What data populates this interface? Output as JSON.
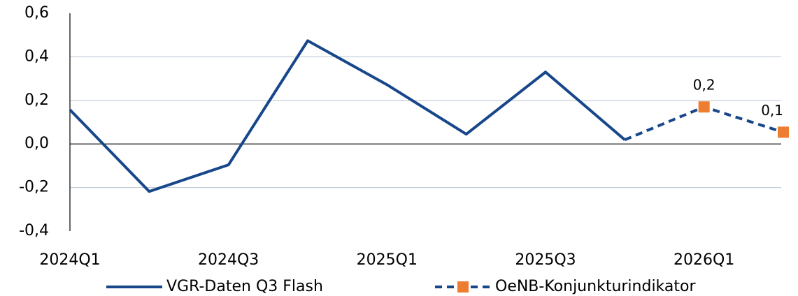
{
  "chart_data": {
    "type": "line",
    "categories": [
      "2024Q1",
      null,
      "2024Q3",
      null,
      "2025Q1",
      null,
      "2025Q3",
      null,
      "2026Q1",
      null
    ],
    "series": [
      {
        "name": "VGR-Daten Q3 Flash",
        "color": "#17478a",
        "dash": false,
        "values": [
          0.157,
          -0.218,
          -0.096,
          0.474,
          0.272,
          0.045,
          0.33,
          0.019,
          null,
          null
        ]
      },
      {
        "name": "OeNB-Konjunkturindikator",
        "color": "#17478a",
        "marker_color": "#ed7d31",
        "dash": true,
        "values": [
          null,
          null,
          null,
          null,
          null,
          null,
          null,
          0.019,
          0.17,
          0.054
        ],
        "value_labels": [
          null,
          null,
          null,
          null,
          null,
          null,
          null,
          null,
          "0,2",
          "0,1"
        ]
      }
    ],
    "ylim": [
      -0.4,
      0.6
    ],
    "yticks": [
      {
        "value": -0.4,
        "label": "-0,4"
      },
      {
        "value": -0.2,
        "label": "-0,2"
      },
      {
        "value": 0,
        "label": "0,0"
      },
      {
        "value": 0.2,
        "label": "0,2"
      },
      {
        "value": 0.4,
        "label": "0,4"
      },
      {
        "value": 0.6,
        "label": "0,6"
      }
    ],
    "grid": true,
    "legend": "bottom"
  }
}
